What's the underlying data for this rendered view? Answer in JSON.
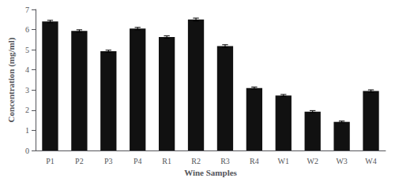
{
  "chart_data": {
    "type": "bar",
    "xlabel": "Wine Samples",
    "ylabel": "Concentration (mg/ml)",
    "categories": [
      "P1",
      "P2",
      "P3",
      "P4",
      "R1",
      "R2",
      "R3",
      "R4",
      "W1",
      "W2",
      "W3",
      "W4"
    ],
    "values": [
      6.4,
      5.93,
      4.93,
      6.05,
      5.63,
      6.5,
      5.18,
      3.1,
      2.73,
      1.93,
      1.42,
      2.95
    ],
    "errors": [
      0.06,
      0.06,
      0.05,
      0.06,
      0.06,
      0.07,
      0.07,
      0.05,
      0.05,
      0.05,
      0.04,
      0.06
    ],
    "color": "#111111",
    "ylim": [
      0,
      7
    ],
    "yticks": [
      0,
      1,
      2,
      3,
      4,
      5,
      6,
      7
    ],
    "grid": false
  }
}
